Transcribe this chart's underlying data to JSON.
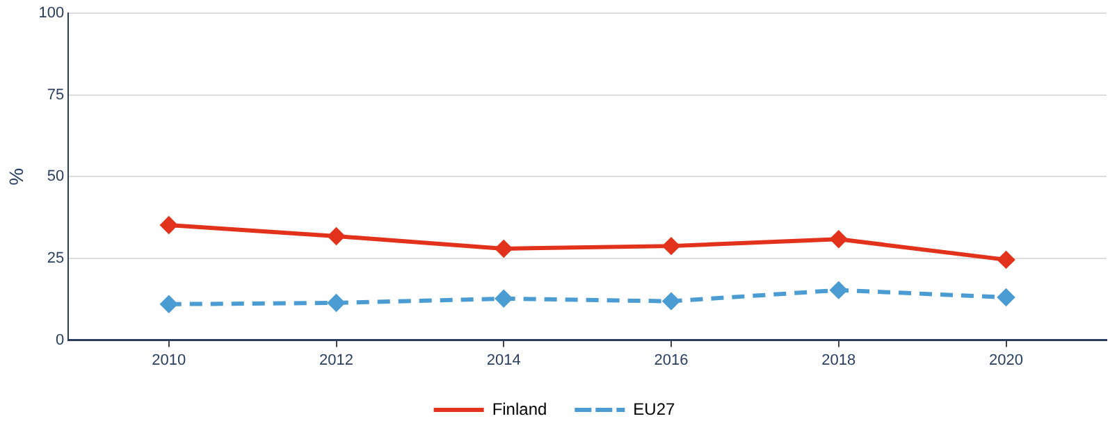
{
  "chart_data": {
    "type": "line",
    "ylabel": "%",
    "x": [
      2010,
      2012,
      2014,
      2016,
      2018,
      2020
    ],
    "series": [
      {
        "name": "Finland",
        "color": "#e2321b",
        "values": [
          35.2,
          31.8,
          28,
          28.8,
          30.9,
          24.6
        ],
        "line_style": "solid"
      },
      {
        "name": "EU27",
        "color": "#4a9cd2",
        "values": [
          11,
          11.4,
          12.7,
          11.9,
          15.3,
          13.1
        ],
        "line_style": "dashed"
      }
    ],
    "xlim": [
      2008.8,
      2021.2
    ],
    "xticks": [
      2010,
      2012,
      2014,
      2016,
      2018,
      2020
    ],
    "ylim": [
      0,
      100
    ],
    "yticks": [
      0,
      25,
      50,
      75,
      100
    ],
    "grid": "y",
    "legend": "bottom",
    "marker": "diamond"
  }
}
